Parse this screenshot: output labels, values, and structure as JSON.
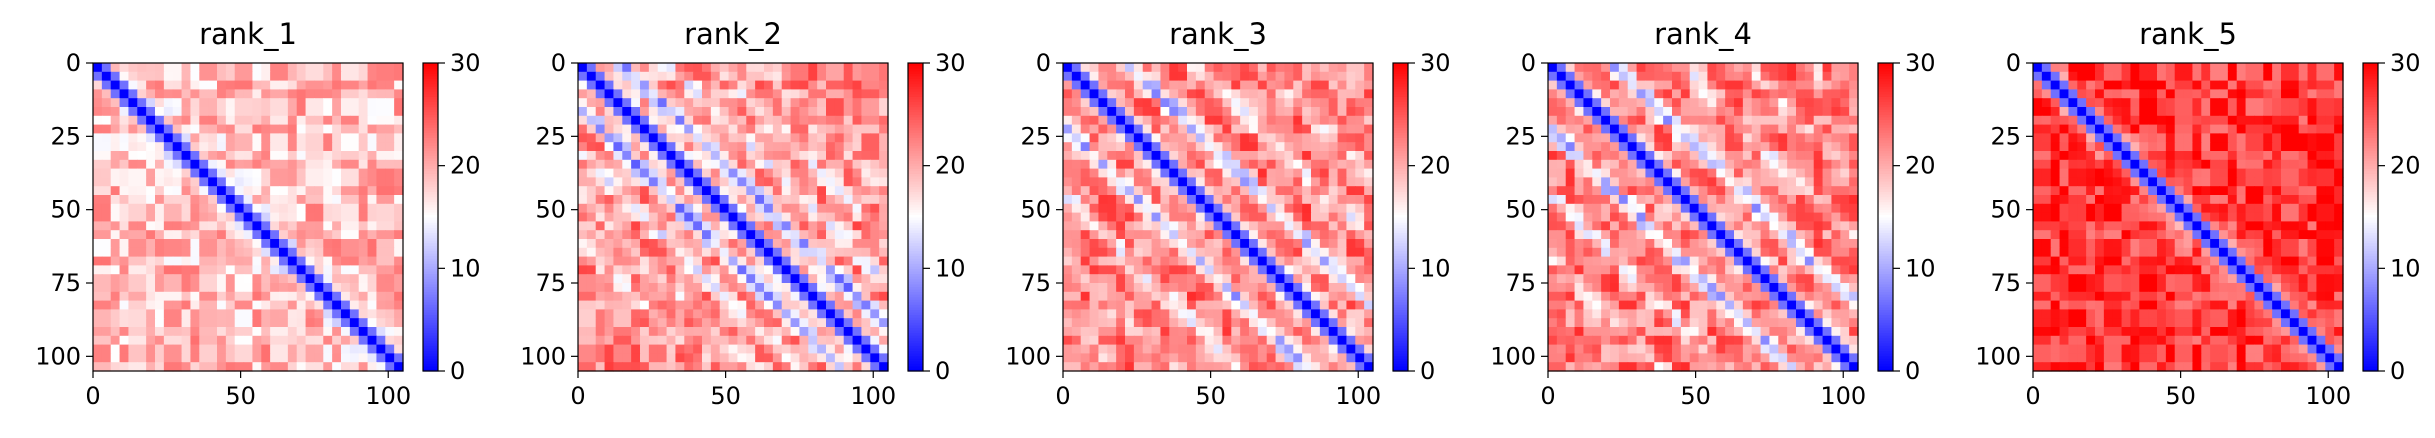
{
  "chart_data": [
    {
      "type": "heatmap",
      "title": "rank_1",
      "xticks": [
        "0",
        "50",
        "100"
      ],
      "yticks": [
        "0",
        "25",
        "50",
        "75",
        "100"
      ],
      "xlim": [
        0,
        105
      ],
      "ylim": [
        105,
        0
      ],
      "colorbar": {
        "ticks": [
          "0",
          "10",
          "20",
          "30"
        ],
        "range": [
          0,
          30
        ],
        "colormap": "bwr"
      },
      "pattern": {
        "diagonal_bands": [],
        "background_level": 19
      }
    },
    {
      "type": "heatmap",
      "title": "rank_2",
      "xticks": [
        "0",
        "50",
        "100"
      ],
      "yticks": [
        "0",
        "25",
        "50",
        "75",
        "100"
      ],
      "xlim": [
        0,
        105
      ],
      "ylim": [
        105,
        0
      ],
      "colorbar": {
        "ticks": [
          "0",
          "10",
          "20",
          "30"
        ],
        "range": [
          0,
          30
        ],
        "colormap": "bwr"
      },
      "pattern": {
        "diagonal_bands": [
          15
        ],
        "background_level": 22
      }
    },
    {
      "type": "heatmap",
      "title": "rank_3",
      "xticks": [
        "0",
        "50",
        "100"
      ],
      "yticks": [
        "0",
        "25",
        "50",
        "75",
        "100"
      ],
      "xlim": [
        0,
        105
      ],
      "ylim": [
        105,
        0
      ],
      "colorbar": {
        "ticks": [
          "0",
          "10",
          "20",
          "30"
        ],
        "range": [
          0,
          30
        ],
        "colormap": "bwr"
      },
      "pattern": {
        "diagonal_bands": [
          22
        ],
        "background_level": 23
      }
    },
    {
      "type": "heatmap",
      "title": "rank_4",
      "xticks": [
        "0",
        "50",
        "100"
      ],
      "yticks": [
        "0",
        "25",
        "50",
        "75",
        "100"
      ],
      "xlim": [
        0,
        105
      ],
      "ylim": [
        105,
        0
      ],
      "colorbar": {
        "ticks": [
          "0",
          "10",
          "20",
          "30"
        ],
        "range": [
          0,
          30
        ],
        "colormap": "bwr"
      },
      "pattern": {
        "diagonal_bands": [
          22
        ],
        "background_level": 23
      }
    },
    {
      "type": "heatmap",
      "title": "rank_5",
      "xticks": [
        "0",
        "50",
        "100"
      ],
      "yticks": [
        "0",
        "25",
        "50",
        "75",
        "100"
      ],
      "xlim": [
        0,
        105
      ],
      "ylim": [
        105,
        0
      ],
      "colorbar": {
        "ticks": [
          "0",
          "10",
          "20",
          "30"
        ],
        "range": [
          0,
          30
        ],
        "colormap": "bwr"
      },
      "pattern": {
        "diagonal_bands": [],
        "background_level": 27
      }
    }
  ]
}
